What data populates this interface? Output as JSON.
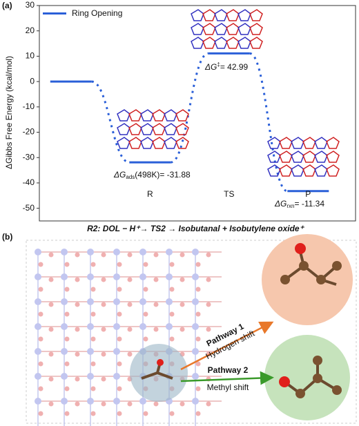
{
  "panel_labels": [
    "(a)",
    "(b)"
  ],
  "chart_data": {
    "type": "energy-profile",
    "ylabel": "ΔGibbs Free Energy (kcal/mol)",
    "categories": [
      null,
      "R",
      "TS",
      "P"
    ],
    "series": [
      {
        "name": "Ring Opening",
        "color": "#2a5fd8",
        "values": [
          0,
          -31.88,
          11.11,
          -43.22
        ]
      }
    ],
    "ylim": [
      -55,
      30
    ],
    "yticks": [
      -50,
      -40,
      -30,
      -20,
      -10,
      0,
      10,
      20,
      30
    ],
    "legend": "upper-left",
    "annotations": [
      {
        "main": "ΔG",
        "sub": "ads",
        "rest": "(498K)= -31.88"
      },
      {
        "main": "ΔG",
        "sup": "‡",
        "rest": "= 42.99"
      },
      {
        "main": "ΔG",
        "sub": "rxn",
        "rest": "= -11.34"
      }
    ],
    "caption": "R2: DOL − H⁺→ TS2 → Isobutanal + Isobutylene oxide⁺"
  },
  "panel_b": {
    "pathway_1": {
      "title": "Pathway 1",
      "label": "Hydrogen shift"
    },
    "pathway_2": {
      "title": "Pathway 2",
      "label": "Methyl shift"
    }
  }
}
